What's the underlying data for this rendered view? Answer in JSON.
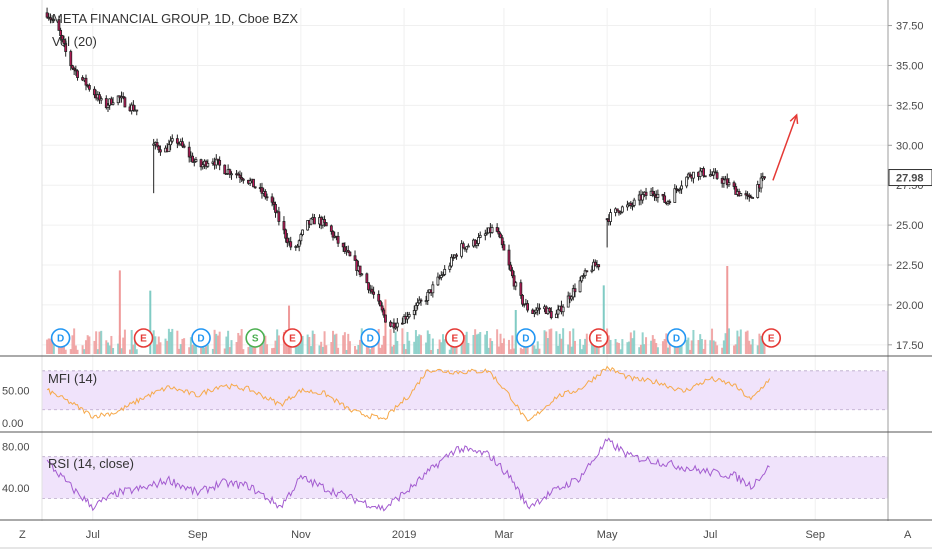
{
  "header": {
    "title": "META FINANCIAL GROUP, 1D, Cboe BZX",
    "subtitle": "Vol (20)"
  },
  "corner": {
    "left": "Z",
    "right": "A"
  },
  "colors": {
    "up": "#ffffff",
    "down": "#c2185b",
    "wick": "#222222",
    "vol_up": "#80cbc4",
    "vol_down": "#ef9a9a",
    "mfi_line": "#f6a94b",
    "rsi_line": "#a35cd0",
    "band_fill": "#f0e3fb",
    "arrow": "#e53935",
    "dividend": "#2196f3",
    "earnings": "#e53935",
    "split": "#4caf50"
  },
  "chart_data": [
    {
      "type": "candlestick",
      "title": "META FINANCIAL GROUP, 1D, Cboe BZX",
      "ylim": [
        16.8,
        38.6
      ],
      "y_ticks": [
        "37.50",
        "35.00",
        "32.50",
        "30.00",
        "27.50",
        "25.00",
        "22.50",
        "20.00",
        "17.50"
      ],
      "last_price_label": "27.98",
      "x_ticks": [
        "Jul",
        "Sep",
        "Nov",
        "2019",
        "Mar",
        "May",
        "Jul",
        "Sep"
      ],
      "x_range": [
        "2018-06-01",
        "2019-10-14"
      ],
      "x_tick_dates": [
        "2018-07-01",
        "2018-09-01",
        "2018-11-01",
        "2019-01-01",
        "2019-03-01",
        "2019-05-01",
        "2019-07-01",
        "2019-09-01"
      ],
      "price_path": [
        [
          "2018-06-04",
          38.3
        ],
        [
          "2018-06-10",
          37.4
        ],
        [
          "2018-06-17",
          35.2
        ],
        [
          "2018-06-24",
          34.2
        ],
        [
          "2018-07-01",
          33.4
        ],
        [
          "2018-07-08",
          32.4
        ],
        [
          "2018-07-15",
          33.1
        ],
        [
          "2018-07-22",
          32.5
        ],
        [
          "2018-07-29",
          32.1
        ],
        [
          "2018-08-06",
          30.0
        ],
        [
          "2018-08-13",
          29.7
        ],
        [
          "2018-08-19",
          30.4
        ],
        [
          "2018-08-26",
          29.5
        ],
        [
          "2018-09-02",
          28.6
        ],
        [
          "2018-09-09",
          29.2
        ],
        [
          "2018-09-16",
          28.5
        ],
        [
          "2018-09-23",
          28.3
        ],
        [
          "2018-09-30",
          27.9
        ],
        [
          "2018-10-07",
          27.2
        ],
        [
          "2018-10-14",
          26.6
        ],
        [
          "2018-10-21",
          24.8
        ],
        [
          "2018-10-28",
          23.2
        ],
        [
          "2018-11-04",
          25.0
        ],
        [
          "2018-11-11",
          25.4
        ],
        [
          "2018-11-18",
          24.7
        ],
        [
          "2018-11-25",
          23.6
        ],
        [
          "2018-12-02",
          22.7
        ],
        [
          "2018-12-09",
          21.6
        ],
        [
          "2018-12-16",
          20.2
        ],
        [
          "2018-12-23",
          18.7
        ],
        [
          "2018-12-30",
          19.0
        ],
        [
          "2019-01-06",
          19.7
        ],
        [
          "2019-01-13",
          20.3
        ],
        [
          "2019-01-20",
          21.4
        ],
        [
          "2019-01-27",
          22.4
        ],
        [
          "2019-02-03",
          23.6
        ],
        [
          "2019-02-10",
          23.8
        ],
        [
          "2019-02-17",
          24.3
        ],
        [
          "2019-02-24",
          24.9
        ],
        [
          "2019-03-03",
          22.7
        ],
        [
          "2019-03-10",
          20.5
        ],
        [
          "2019-03-17",
          19.5
        ],
        [
          "2019-03-24",
          19.9
        ],
        [
          "2019-03-31",
          19.2
        ],
        [
          "2019-04-07",
          20.3
        ],
        [
          "2019-04-14",
          21.3
        ],
        [
          "2019-04-21",
          22.3
        ],
        [
          "2019-04-27",
          22.6
        ],
        [
          "2019-05-01",
          25.4
        ],
        [
          "2019-05-08",
          26.0
        ],
        [
          "2019-05-15",
          26.2
        ],
        [
          "2019-05-22",
          26.8
        ],
        [
          "2019-05-29",
          27.1
        ],
        [
          "2019-06-05",
          26.4
        ],
        [
          "2019-06-12",
          27.4
        ],
        [
          "2019-06-19",
          28.2
        ],
        [
          "2019-06-26",
          28.3
        ],
        [
          "2019-07-03",
          28.1
        ],
        [
          "2019-07-10",
          27.7
        ],
        [
          "2019-07-17",
          27.1
        ],
        [
          "2019-07-24",
          26.6
        ],
        [
          "2019-07-29",
          27.5
        ],
        [
          "2019-08-03",
          27.98
        ]
      ],
      "gaps": [
        {
          "from": "2018-07-29",
          "to": "2018-08-06",
          "low": 27.0
        },
        {
          "from": "2019-04-27",
          "to": "2019-05-01",
          "low": 23.6
        }
      ],
      "forecast_arrow": {
        "from": [
          "2019-08-07",
          27.8
        ],
        "to": [
          "2019-08-21",
          31.9
        ]
      },
      "volume": {
        "name": "Vol (20)",
        "spikes": [
          {
            "date": "2018-07-17",
            "rel": 0.95,
            "dir": "down"
          },
          {
            "date": "2018-08-04",
            "rel": 0.72,
            "dir": "up"
          },
          {
            "date": "2018-10-25",
            "rel": 0.55,
            "dir": "down"
          },
          {
            "date": "2018-12-21",
            "rel": 0.62,
            "dir": "down"
          },
          {
            "date": "2019-03-08",
            "rel": 0.5,
            "dir": "up"
          },
          {
            "date": "2019-04-29",
            "rel": 0.78,
            "dir": "up"
          },
          {
            "date": "2019-07-11",
            "rel": 1.0,
            "dir": "down"
          }
        ]
      },
      "events": [
        {
          "type": "dividend",
          "label": "D",
          "date": "2018-06-12"
        },
        {
          "type": "earnings",
          "label": "E",
          "date": "2018-07-31"
        },
        {
          "type": "dividend",
          "label": "D",
          "date": "2018-09-03"
        },
        {
          "type": "split",
          "label": "S",
          "date": "2018-10-05"
        },
        {
          "type": "earnings",
          "label": "E",
          "date": "2018-10-27"
        },
        {
          "type": "dividend",
          "label": "D",
          "date": "2018-12-12"
        },
        {
          "type": "earnings",
          "label": "E",
          "date": "2019-01-31"
        },
        {
          "type": "dividend",
          "label": "D",
          "date": "2019-03-14"
        },
        {
          "type": "earnings",
          "label": "E",
          "date": "2019-04-26"
        },
        {
          "type": "dividend",
          "label": "D",
          "date": "2019-06-11"
        },
        {
          "type": "earnings",
          "label": "E",
          "date": "2019-08-06"
        }
      ]
    },
    {
      "type": "line",
      "name": "MFI (14)",
      "label": "MFI (14)",
      "ylim": [
        -5,
        92
      ],
      "y_ticks": [
        {
          "value": 50,
          "label": "50.00"
        },
        {
          "value": 0,
          "label": "0.00"
        }
      ],
      "bands": [
        80,
        20
      ],
      "path": [
        [
          "2018-06-04",
          50
        ],
        [
          "2018-06-20",
          28
        ],
        [
          "2018-07-01",
          10
        ],
        [
          "2018-07-15",
          16
        ],
        [
          "2018-08-01",
          40
        ],
        [
          "2018-08-15",
          55
        ],
        [
          "2018-09-01",
          42
        ],
        [
          "2018-09-15",
          58
        ],
        [
          "2018-10-01",
          52
        ],
        [
          "2018-10-20",
          28
        ],
        [
          "2018-11-01",
          50
        ],
        [
          "2018-11-15",
          45
        ],
        [
          "2018-12-01",
          18
        ],
        [
          "2018-12-20",
          5
        ],
        [
          "2019-01-05",
          45
        ],
        [
          "2019-01-15",
          82
        ],
        [
          "2019-02-01",
          78
        ],
        [
          "2019-02-20",
          80
        ],
        [
          "2019-03-05",
          40
        ],
        [
          "2019-03-15",
          0
        ],
        [
          "2019-04-01",
          40
        ],
        [
          "2019-04-15",
          52
        ],
        [
          "2019-05-01",
          85
        ],
        [
          "2019-05-15",
          68
        ],
        [
          "2019-06-01",
          62
        ],
        [
          "2019-06-15",
          48
        ],
        [
          "2019-07-01",
          68
        ],
        [
          "2019-07-15",
          58
        ],
        [
          "2019-07-25",
          35
        ],
        [
          "2019-08-05",
          68
        ]
      ]
    },
    {
      "type": "line",
      "name": "RSI (14, close)",
      "label": "RSI (14, close)",
      "ylim": [
        15,
        87
      ],
      "y_ticks": [
        {
          "value": 80,
          "label": "80.00"
        },
        {
          "value": 40,
          "label": "40.00"
        }
      ],
      "bands": [
        70,
        30
      ],
      "path": [
        [
          "2018-06-04",
          65
        ],
        [
          "2018-06-20",
          38
        ],
        [
          "2018-07-01",
          22
        ],
        [
          "2018-07-15",
          35
        ],
        [
          "2018-08-01",
          40
        ],
        [
          "2018-08-15",
          48
        ],
        [
          "2018-09-01",
          35
        ],
        [
          "2018-09-15",
          45
        ],
        [
          "2018-10-01",
          42
        ],
        [
          "2018-10-20",
          22
        ],
        [
          "2018-11-01",
          50
        ],
        [
          "2018-11-15",
          40
        ],
        [
          "2018-12-01",
          30
        ],
        [
          "2018-12-20",
          20
        ],
        [
          "2019-01-05",
          40
        ],
        [
          "2019-01-20",
          62
        ],
        [
          "2019-02-01",
          78
        ],
        [
          "2019-02-20",
          72
        ],
        [
          "2019-03-05",
          50
        ],
        [
          "2019-03-15",
          22
        ],
        [
          "2019-04-01",
          38
        ],
        [
          "2019-04-15",
          50
        ],
        [
          "2019-05-01",
          85
        ],
        [
          "2019-05-15",
          70
        ],
        [
          "2019-06-01",
          65
        ],
        [
          "2019-06-15",
          60
        ],
        [
          "2019-07-01",
          55
        ],
        [
          "2019-07-15",
          52
        ],
        [
          "2019-07-25",
          42
        ],
        [
          "2019-08-05",
          60
        ]
      ]
    }
  ]
}
